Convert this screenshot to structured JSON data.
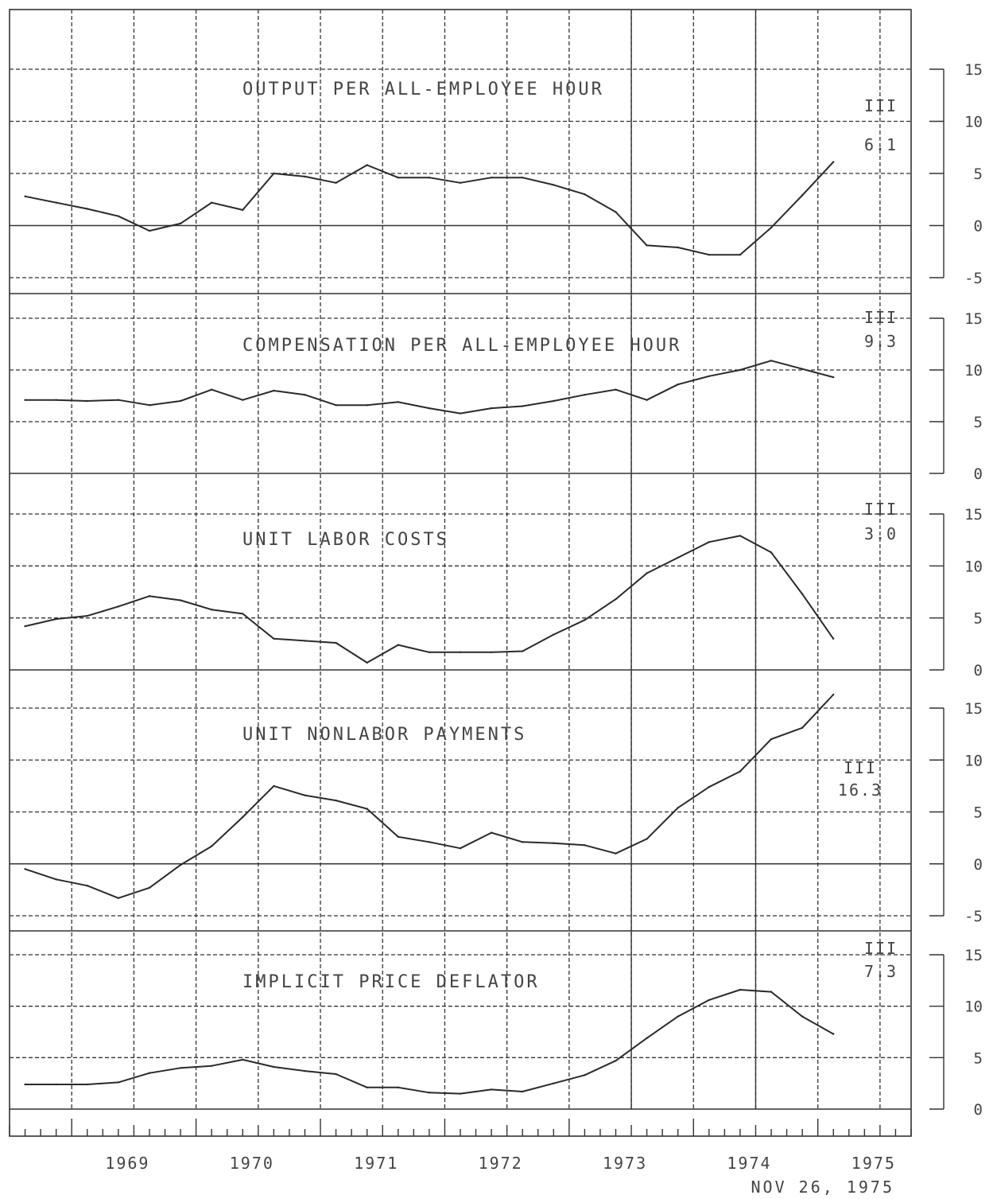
{
  "chart_data": {
    "type": "line",
    "x_axis": {
      "year_labels": [
        "1969",
        "1970",
        "1971",
        "1972",
        "1973",
        "1974",
        "1975"
      ],
      "x_start": 1968.5,
      "x_end": 1975.75,
      "tick_per_year": 8
    },
    "date_label": "NOV 26, 1975",
    "panels": [
      {
        "title": "OUTPUT PER ALL-EMPLOYEE HOUR",
        "ylim": [
          -5,
          15
        ],
        "ticks": [
          15,
          10,
          5,
          0,
          -5
        ],
        "zero_line": true,
        "annotation": {
          "quarter": "III",
          "value": "6.1"
        },
        "x": [
          1968.625,
          1968.875,
          1969.125,
          1969.375,
          1969.625,
          1969.875,
          1970.125,
          1970.375,
          1970.625,
          1970.875,
          1971.125,
          1971.375,
          1971.625,
          1971.875,
          1972.125,
          1972.375,
          1972.625,
          1972.875,
          1973.125,
          1973.375,
          1973.625,
          1973.875,
          1974.125,
          1974.375,
          1974.625,
          1974.875,
          1975.125
        ],
        "values": [
          2.8,
          2.2,
          1.6,
          0.9,
          -0.5,
          0.2,
          2.2,
          1.5,
          5.0,
          4.7,
          4.1,
          5.8,
          4.6,
          4.6,
          4.1,
          4.6,
          4.6,
          3.9,
          3.0,
          1.3,
          -1.9,
          -2.1,
          -2.8,
          -2.8,
          -0.2,
          2.9,
          6.1
        ]
      },
      {
        "title": "COMPENSATION PER ALL-EMPLOYEE HOUR",
        "ylim": [
          0,
          15
        ],
        "ticks": [
          15,
          10,
          5,
          0
        ],
        "zero_line": false,
        "annotation": {
          "quarter": "III",
          "value": "9.3"
        },
        "x": [
          1968.625,
          1968.875,
          1969.125,
          1969.375,
          1969.625,
          1969.875,
          1970.125,
          1970.375,
          1970.625,
          1970.875,
          1971.125,
          1971.375,
          1971.625,
          1971.875,
          1972.125,
          1972.375,
          1972.625,
          1972.875,
          1973.125,
          1973.375,
          1973.625,
          1973.875,
          1974.125,
          1974.375,
          1974.625,
          1974.875,
          1975.125
        ],
        "values": [
          7.1,
          7.1,
          7.0,
          7.1,
          6.6,
          7.0,
          8.1,
          7.1,
          8.0,
          7.6,
          6.6,
          6.6,
          6.9,
          6.3,
          5.8,
          6.3,
          6.5,
          7.0,
          7.6,
          8.1,
          7.1,
          8.6,
          9.4,
          10.0,
          10.9,
          10.1,
          9.3
        ]
      },
      {
        "title": "UNIT LABOR COSTS",
        "ylim": [
          0,
          15
        ],
        "ticks": [
          15,
          10,
          5,
          0
        ],
        "zero_line": true,
        "annotation": {
          "quarter": "III",
          "value": "3.0"
        },
        "x": [
          1968.625,
          1968.875,
          1969.125,
          1969.375,
          1969.625,
          1969.875,
          1970.125,
          1970.375,
          1970.625,
          1970.875,
          1971.125,
          1971.375,
          1971.625,
          1971.875,
          1972.125,
          1972.375,
          1972.625,
          1972.875,
          1973.125,
          1973.375,
          1973.625,
          1973.875,
          1974.125,
          1974.375,
          1974.625,
          1974.875,
          1975.125
        ],
        "values": [
          4.2,
          4.9,
          5.2,
          6.1,
          7.1,
          6.7,
          5.8,
          5.4,
          3.0,
          2.8,
          2.6,
          0.7,
          2.4,
          1.7,
          1.7,
          1.7,
          1.8,
          3.4,
          4.8,
          6.8,
          9.3,
          10.8,
          12.3,
          12.9,
          11.3,
          7.3,
          3.0
        ]
      },
      {
        "title": "UNIT NONLABOR PAYMENTS",
        "ylim": [
          -5,
          15
        ],
        "ticks": [
          15,
          10,
          5,
          0,
          -5
        ],
        "zero_line": true,
        "annotation": {
          "quarter": "III",
          "value": "16.3"
        },
        "x": [
          1968.625,
          1968.875,
          1969.125,
          1969.375,
          1969.625,
          1969.875,
          1970.125,
          1970.375,
          1970.625,
          1970.875,
          1971.125,
          1971.375,
          1971.625,
          1971.875,
          1972.125,
          1972.375,
          1972.625,
          1972.875,
          1973.125,
          1973.375,
          1973.625,
          1973.875,
          1974.125,
          1974.375,
          1974.625,
          1974.875,
          1975.125
        ],
        "values": [
          -0.5,
          -1.5,
          -2.1,
          -3.3,
          -2.3,
          -0.1,
          1.7,
          4.5,
          7.5,
          6.6,
          6.1,
          5.3,
          2.6,
          2.1,
          1.5,
          3.0,
          2.1,
          2.0,
          1.8,
          1.0,
          2.4,
          5.4,
          7.4,
          8.9,
          12.0,
          13.1,
          16.3
        ]
      },
      {
        "title": "IMPLICIT PRICE DEFLATOR",
        "ylim": [
          0,
          15
        ],
        "ticks": [
          15,
          10,
          5,
          0
        ],
        "zero_line": false,
        "annotation": {
          "quarter": "III",
          "value": "7.3"
        },
        "x": [
          1968.625,
          1968.875,
          1969.125,
          1969.375,
          1969.625,
          1969.875,
          1970.125,
          1970.375,
          1970.625,
          1970.875,
          1971.125,
          1971.375,
          1971.625,
          1971.875,
          1972.125,
          1972.375,
          1972.625,
          1972.875,
          1973.125,
          1973.375,
          1973.625,
          1973.875,
          1974.125,
          1974.375,
          1974.625,
          1974.875,
          1975.125
        ],
        "values": [
          2.4,
          2.4,
          2.4,
          2.6,
          3.5,
          4.0,
          4.2,
          4.8,
          4.1,
          3.7,
          3.4,
          2.1,
          2.1,
          1.6,
          1.5,
          1.9,
          1.7,
          2.5,
          3.3,
          4.7,
          6.9,
          9.0,
          10.6,
          11.6,
          11.4,
          9.0,
          7.3
        ]
      }
    ]
  }
}
